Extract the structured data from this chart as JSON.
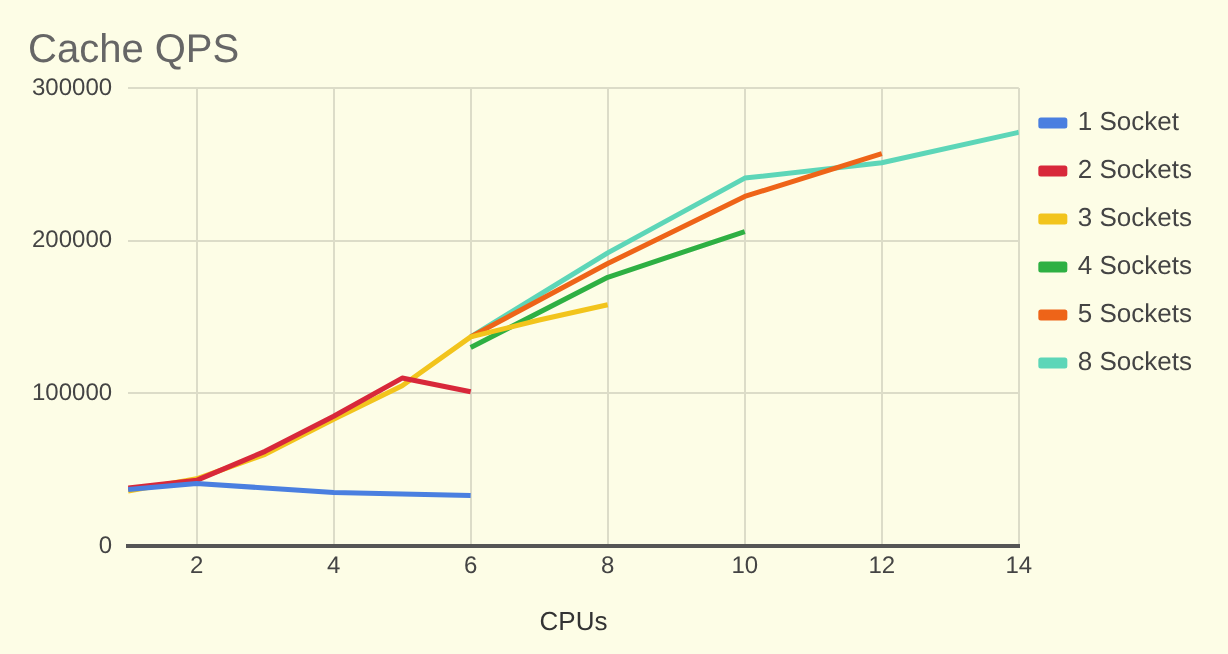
{
  "chart_data": {
    "type": "line",
    "title": "Cache QPS",
    "xlabel": "CPUs",
    "xlim": [
      1,
      14
    ],
    "xticks": [
      2,
      4,
      6,
      8,
      10,
      12,
      14
    ],
    "ylim": [
      0,
      300000
    ],
    "yticks": [
      0,
      100000,
      200000,
      300000
    ],
    "grid": true,
    "legend": "right",
    "marker": "none",
    "line_style": "solid",
    "series": [
      {
        "name": "1 Socket",
        "color": "#4a7fe0",
        "x": [
          1,
          2,
          3,
          4,
          5,
          6
        ],
        "values": [
          37000,
          41000,
          38000,
          35000,
          34000,
          33000
        ]
      },
      {
        "name": "2 Sockets",
        "color": "#d8283a",
        "x": [
          1,
          2,
          3,
          4,
          5,
          6
        ],
        "values": [
          38000,
          43000,
          62000,
          85000,
          110000,
          101000
        ]
      },
      {
        "name": "3 Sockets",
        "color": "#f2c41c",
        "x": [
          1,
          2,
          3,
          4,
          5,
          6,
          7,
          8
        ],
        "values": [
          36000,
          44000,
          60000,
          83000,
          105000,
          137000,
          148000,
          158000
        ]
      },
      {
        "name": "4 Sockets",
        "color": "#2eb043",
        "x": [
          6,
          8,
          10
        ],
        "values": [
          130000,
          176000,
          206000
        ]
      },
      {
        "name": "5 Sockets",
        "color": "#ee6418",
        "x": [
          6,
          8,
          10,
          12
        ],
        "values": [
          137000,
          185000,
          229000,
          257000
        ]
      },
      {
        "name": "8 Sockets",
        "color": "#5dd6b8",
        "x": [
          6,
          8,
          10,
          12,
          14
        ],
        "values": [
          137000,
          192000,
          241000,
          251000,
          271000
        ]
      }
    ]
  }
}
